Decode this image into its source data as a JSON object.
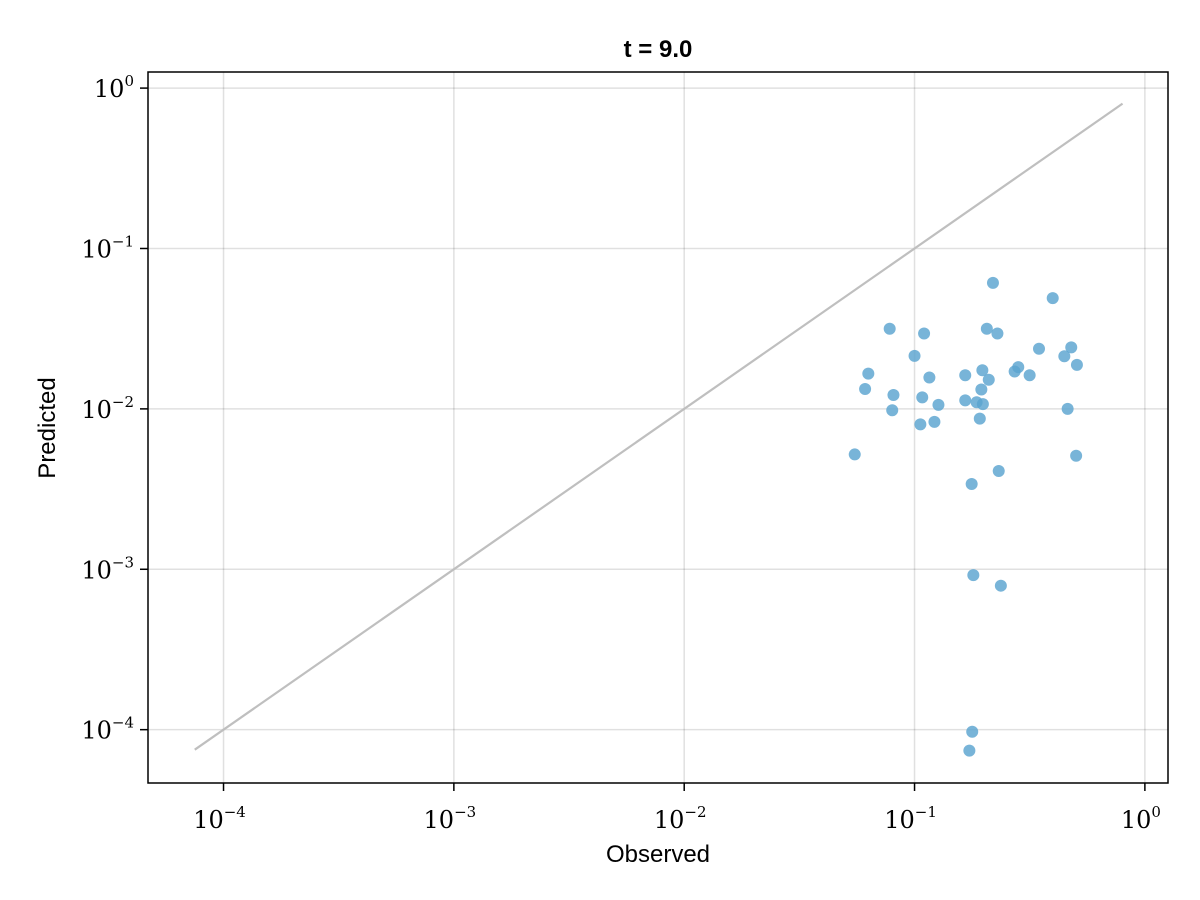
{
  "chart_data": {
    "type": "scatter",
    "title": "t = 9.0",
    "xlabel": "Observed",
    "ylabel": "Predicted",
    "xscale": "log",
    "yscale": "log",
    "xlim": [
      4.7e-05,
      1.26
    ],
    "ylim": [
      4.65e-05,
      1.26
    ],
    "grid": true,
    "x_ticks": [
      {
        "value": 0.0001,
        "base": "10",
        "exp": "−4"
      },
      {
        "value": 0.001,
        "base": "10",
        "exp": "−3"
      },
      {
        "value": 0.01,
        "base": "10",
        "exp": "−2"
      },
      {
        "value": 0.1,
        "base": "10",
        "exp": "−1"
      },
      {
        "value": 1,
        "base": "10",
        "exp": "0"
      }
    ],
    "y_ticks": [
      {
        "value": 0.0001,
        "base": "10",
        "exp": "−4"
      },
      {
        "value": 0.001,
        "base": "10",
        "exp": "−3"
      },
      {
        "value": 0.01,
        "base": "10",
        "exp": "−2"
      },
      {
        "value": 0.1,
        "base": "10",
        "exp": "−1"
      },
      {
        "value": 1,
        "base": "10",
        "exp": "0"
      }
    ],
    "reference_line": {
      "x": [
        7.5e-05,
        0.8
      ],
      "y": [
        7.5e-05,
        0.8
      ],
      "color": "#bfbfbf"
    },
    "point_color": "#5aa3cf",
    "points": [
      {
        "x": 0.055,
        "y": 0.0052
      },
      {
        "x": 0.061,
        "y": 0.0133
      },
      {
        "x": 0.063,
        "y": 0.0166
      },
      {
        "x": 0.078,
        "y": 0.0316
      },
      {
        "x": 0.08,
        "y": 0.0098
      },
      {
        "x": 0.081,
        "y": 0.0122
      },
      {
        "x": 0.1,
        "y": 0.0214
      },
      {
        "x": 0.106,
        "y": 0.008
      },
      {
        "x": 0.108,
        "y": 0.0118
      },
      {
        "x": 0.11,
        "y": 0.0295
      },
      {
        "x": 0.116,
        "y": 0.0157
      },
      {
        "x": 0.122,
        "y": 0.0083
      },
      {
        "x": 0.127,
        "y": 0.0106
      },
      {
        "x": 0.166,
        "y": 0.0162
      },
      {
        "x": 0.166,
        "y": 0.0113
      },
      {
        "x": 0.173,
        "y": 7.4e-05
      },
      {
        "x": 0.177,
        "y": 0.0034
      },
      {
        "x": 0.178,
        "y": 9.7e-05
      },
      {
        "x": 0.18,
        "y": 0.00092
      },
      {
        "x": 0.186,
        "y": 0.011
      },
      {
        "x": 0.192,
        "y": 0.0087
      },
      {
        "x": 0.195,
        "y": 0.0132
      },
      {
        "x": 0.197,
        "y": 0.0174
      },
      {
        "x": 0.198,
        "y": 0.0107
      },
      {
        "x": 0.206,
        "y": 0.0316
      },
      {
        "x": 0.21,
        "y": 0.0152
      },
      {
        "x": 0.219,
        "y": 0.061
      },
      {
        "x": 0.229,
        "y": 0.0295
      },
      {
        "x": 0.232,
        "y": 0.0041
      },
      {
        "x": 0.237,
        "y": 0.00079
      },
      {
        "x": 0.272,
        "y": 0.0171
      },
      {
        "x": 0.282,
        "y": 0.0182
      },
      {
        "x": 0.316,
        "y": 0.0162
      },
      {
        "x": 0.347,
        "y": 0.0237
      },
      {
        "x": 0.398,
        "y": 0.049
      },
      {
        "x": 0.447,
        "y": 0.0213
      },
      {
        "x": 0.462,
        "y": 0.01
      },
      {
        "x": 0.479,
        "y": 0.0242
      },
      {
        "x": 0.503,
        "y": 0.0051
      },
      {
        "x": 0.507,
        "y": 0.0188
      }
    ]
  }
}
